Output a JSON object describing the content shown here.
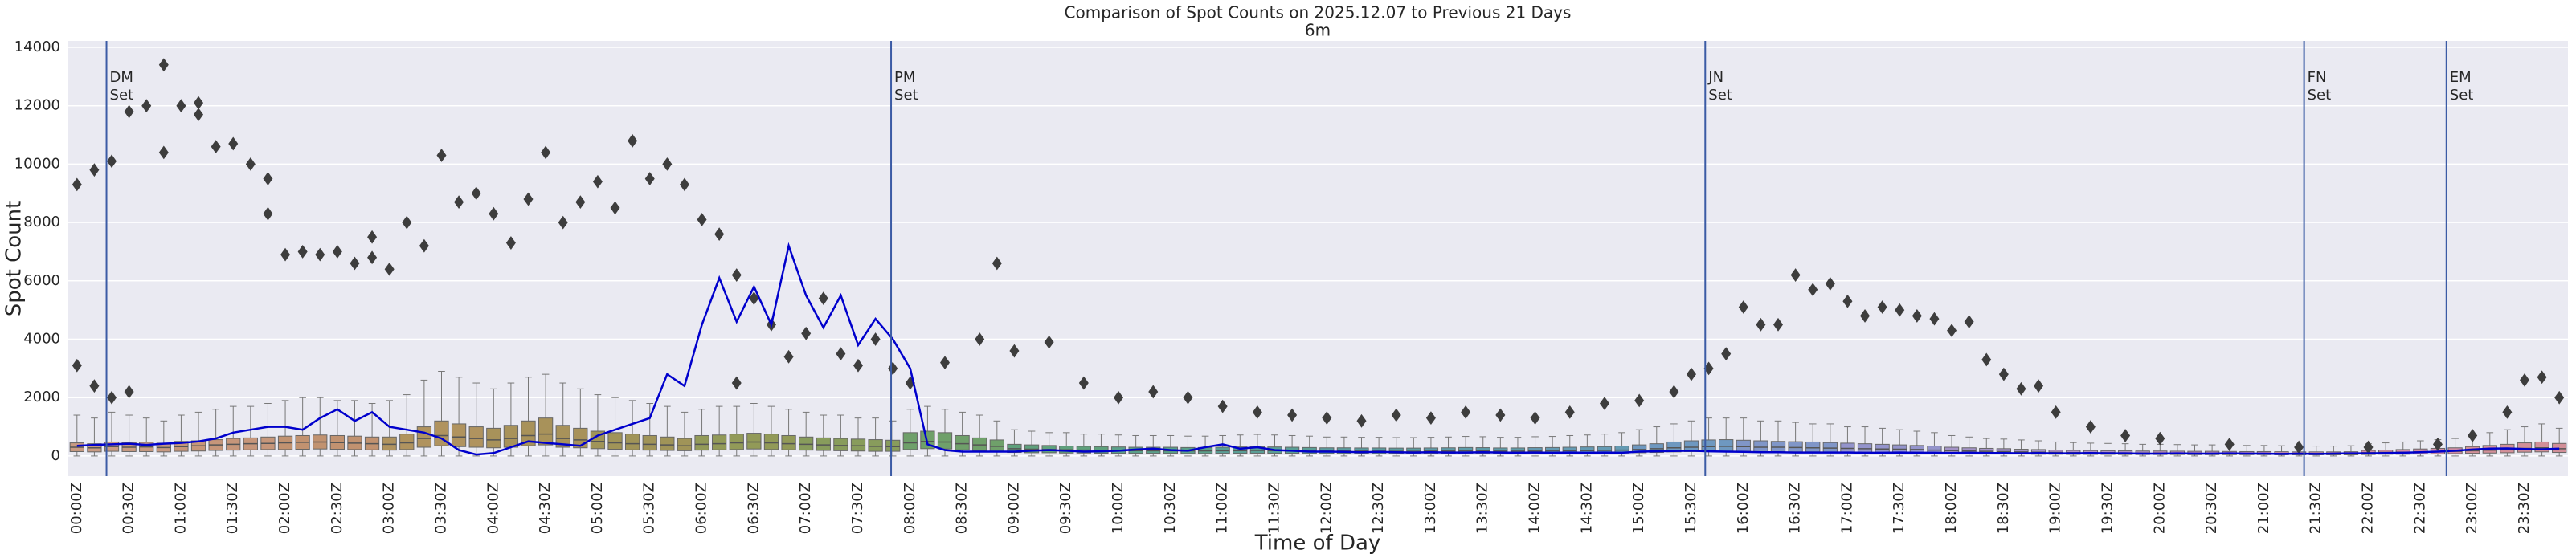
{
  "chart_data": {
    "type": "box",
    "title": "Comparison of Spot Counts on 2025.12.07 to Previous 21 Days",
    "subtitle": "6m",
    "x_label": "Time of Day",
    "y_label": "Spot Count",
    "categories": [
      "00:00Z",
      null,
      null,
      "00:30Z",
      null,
      null,
      "01:00Z",
      null,
      null,
      "01:30Z",
      null,
      null,
      "02:00Z",
      null,
      null,
      "02:30Z",
      null,
      null,
      "03:00Z",
      null,
      null,
      "03:30Z",
      null,
      null,
      "04:00Z",
      null,
      null,
      "04:30Z",
      null,
      null,
      "05:00Z",
      null,
      null,
      "05:30Z",
      null,
      null,
      "06:00Z",
      null,
      null,
      "06:30Z",
      null,
      null,
      "07:00Z",
      null,
      null,
      "07:30Z",
      null,
      null,
      "08:00Z",
      null,
      null,
      "08:30Z",
      null,
      null,
      "09:00Z",
      null,
      null,
      "09:30Z",
      null,
      null,
      "10:00Z",
      null,
      null,
      "10:30Z",
      null,
      null,
      "11:00Z",
      null,
      null,
      "11:30Z",
      null,
      null,
      "12:00Z",
      null,
      null,
      "12:30Z",
      null,
      null,
      "13:00Z",
      null,
      null,
      "13:30Z",
      null,
      null,
      "14:00Z",
      null,
      null,
      "14:30Z",
      null,
      null,
      "15:00Z",
      null,
      null,
      "15:30Z",
      null,
      null,
      "16:00Z",
      null,
      null,
      "16:30Z",
      null,
      null,
      "17:00Z",
      null,
      null,
      "17:30Z",
      null,
      null,
      "18:00Z",
      null,
      null,
      "18:30Z",
      null,
      null,
      "19:00Z",
      null,
      null,
      "19:30Z",
      null,
      null,
      "20:00Z",
      null,
      null,
      "20:30Z",
      null,
      null,
      "21:00Z",
      null,
      null,
      "21:30Z",
      null,
      null,
      "22:00Z",
      null,
      null,
      "22:30Z",
      null,
      null,
      "23:00Z",
      null,
      null,
      "23:30Z",
      null,
      null
    ],
    "boxes": {
      "q1": [
        150,
        140,
        160,
        150,
        150,
        140,
        160,
        170,
        190,
        200,
        210,
        220,
        220,
        230,
        240,
        230,
        220,
        210,
        200,
        220,
        300,
        350,
        320,
        300,
        280,
        300,
        350,
        380,
        300,
        280,
        250,
        230,
        210,
        200,
        190,
        180,
        200,
        210,
        220,
        240,
        220,
        210,
        200,
        190,
        180,
        170,
        160,
        160,
        220,
        250,
        240,
        210,
        190,
        160,
        120,
        110,
        110,
        100,
        100,
        90,
        90,
        90,
        90,
        90,
        85,
        85,
        90,
        90,
        95,
        90,
        90,
        85,
        85,
        85,
        80,
        80,
        80,
        80,
        80,
        85,
        85,
        85,
        80,
        80,
        85,
        85,
        90,
        90,
        95,
        100,
        110,
        120,
        140,
        150,
        160,
        160,
        160,
        150,
        150,
        140,
        140,
        130,
        130,
        120,
        120,
        110,
        110,
        100,
        90,
        80,
        80,
        70,
        70,
        60,
        60,
        55,
        55,
        55,
        50,
        50,
        50,
        50,
        45,
        45,
        45,
        45,
        45,
        40,
        40,
        40,
        40,
        40,
        50,
        60,
        60,
        70,
        70,
        80,
        90,
        100,
        110,
        130,
        140,
        120
      ],
      "median": [
        300,
        280,
        320,
        300,
        310,
        290,
        320,
        350,
        380,
        400,
        420,
        430,
        450,
        470,
        480,
        460,
        440,
        420,
        400,
        450,
        600,
        700,
        650,
        600,
        550,
        600,
        700,
        750,
        600,
        550,
        500,
        450,
        420,
        400,
        380,
        350,
        400,
        420,
        450,
        480,
        450,
        420,
        400,
        380,
        360,
        350,
        330,
        320,
        450,
        500,
        480,
        420,
        380,
        330,
        250,
        230,
        220,
        210,
        200,
        190,
        190,
        185,
        180,
        180,
        175,
        175,
        180,
        185,
        190,
        185,
        180,
        175,
        170,
        170,
        165,
        165,
        160,
        160,
        165,
        170,
        175,
        170,
        165,
        165,
        170,
        175,
        180,
        185,
        190,
        200,
        220,
        250,
        280,
        300,
        320,
        330,
        320,
        300,
        300,
        290,
        280,
        270,
        260,
        250,
        240,
        230,
        220,
        200,
        180,
        170,
        160,
        150,
        140,
        130,
        120,
        115,
        110,
        110,
        105,
        100,
        100,
        100,
        95,
        95,
        90,
        90,
        90,
        85,
        85,
        80,
        80,
        85,
        110,
        120,
        130,
        140,
        150,
        160,
        180,
        200,
        230,
        260,
        280,
        250
      ],
      "q3": [
        450,
        420,
        480,
        460,
        470,
        440,
        500,
        520,
        560,
        600,
        620,
        650,
        680,
        700,
        720,
        700,
        680,
        650,
        650,
        750,
        1000,
        1200,
        1100,
        1000,
        950,
        1050,
        1200,
        1300,
        1050,
        950,
        850,
        800,
        750,
        700,
        650,
        600,
        700,
        720,
        750,
        780,
        750,
        700,
        650,
        620,
        600,
        580,
        560,
        540,
        800,
        850,
        800,
        700,
        620,
        550,
        400,
        380,
        360,
        340,
        330,
        320,
        310,
        300,
        300,
        300,
        290,
        290,
        300,
        310,
        320,
        310,
        300,
        290,
        280,
        280,
        275,
        275,
        270,
        270,
        275,
        280,
        290,
        285,
        275,
        275,
        285,
        290,
        300,
        310,
        320,
        340,
        380,
        420,
        480,
        520,
        550,
        560,
        540,
        520,
        500,
        490,
        480,
        460,
        440,
        420,
        400,
        380,
        360,
        340,
        300,
        280,
        260,
        250,
        230,
        220,
        200,
        190,
        185,
        180,
        175,
        170,
        170,
        165,
        160,
        160,
        155,
        150,
        150,
        145,
        140,
        140,
        140,
        145,
        190,
        200,
        220,
        240,
        260,
        280,
        320,
        360,
        400,
        450,
        480,
        430
      ],
      "whisker_low": [
        0,
        0,
        0,
        0,
        0,
        0,
        0,
        0,
        0,
        0,
        0,
        0,
        0,
        0,
        0,
        0,
        0,
        0,
        0,
        0,
        0,
        0,
        0,
        0,
        0,
        0,
        0,
        0,
        0,
        0,
        0,
        0,
        0,
        0,
        0,
        0,
        0,
        0,
        0,
        0,
        0,
        0,
        0,
        0,
        0,
        0,
        0,
        0,
        0,
        0,
        0,
        0,
        0,
        0,
        0,
        0,
        0,
        0,
        0,
        0,
        0,
        0,
        0,
        0,
        0,
        0,
        0,
        0,
        0,
        0,
        0,
        0,
        0,
        0,
        0,
        0,
        0,
        0,
        0,
        0,
        0,
        0,
        0,
        0,
        0,
        0,
        0,
        0,
        0,
        0,
        0,
        0,
        0,
        0,
        0,
        0,
        0,
        0,
        0,
        0,
        0,
        0,
        0,
        0,
        0,
        0,
        0,
        0,
        0,
        0,
        0,
        0,
        0,
        0,
        0,
        0,
        0,
        0,
        0,
        0,
        0,
        0,
        0,
        0,
        0,
        0,
        0,
        0,
        0,
        0,
        0,
        0,
        0,
        0,
        0,
        0,
        0,
        0,
        0,
        0,
        0,
        0,
        0,
        0
      ],
      "whisker_high": [
        1400,
        1300,
        1500,
        1400,
        1300,
        1200,
        1400,
        1500,
        1600,
        1700,
        1700,
        1800,
        1900,
        2000,
        2000,
        1900,
        1900,
        1800,
        1900,
        2100,
        2600,
        2900,
        2700,
        2500,
        2300,
        2500,
        2700,
        2800,
        2500,
        2300,
        2100,
        2000,
        1900,
        1800,
        1700,
        1500,
        1600,
        1700,
        1700,
        1800,
        1700,
        1600,
        1500,
        1400,
        1400,
        1300,
        1300,
        1200,
        1600,
        1700,
        1600,
        1500,
        1400,
        1200,
        900,
        850,
        800,
        800,
        750,
        750,
        720,
        700,
        700,
        700,
        680,
        680,
        700,
        720,
        740,
        720,
        700,
        680,
        650,
        650,
        640,
        640,
        630,
        630,
        640,
        650,
        670,
        660,
        640,
        640,
        660,
        670,
        700,
        720,
        750,
        800,
        900,
        1000,
        1100,
        1200,
        1300,
        1300,
        1300,
        1200,
        1200,
        1150,
        1100,
        1100,
        1000,
        1000,
        950,
        900,
        850,
        800,
        700,
        650,
        600,
        580,
        550,
        520,
        480,
        460,
        440,
        430,
        420,
        400,
        400,
        390,
        380,
        380,
        370,
        360,
        360,
        350,
        340,
        340,
        340,
        350,
        420,
        450,
        480,
        520,
        560,
        600,
        700,
        800,
        900,
        1000,
        1100,
        950
      ],
      "colors": [
        "#c89a82",
        "#c6967a",
        "#c19270",
        "#b0935f",
        "#a8925a",
        "#a09458",
        "#929a58",
        "#889c5c",
        "#6fa06a",
        "#5ea07c",
        "#5aa08a",
        "#5a9f96",
        "#5b9ea0",
        "#5e9daa",
        "#649bb4",
        "#6e98c0",
        "#8096c8",
        "#9494cc",
        "#a493c8",
        "#b090c4",
        "#be8ebc",
        "#c98cb0",
        "#d08ca4",
        "#d28f98"
      ]
    },
    "outliers": [
      [
        0,
        9300
      ],
      [
        0,
        3100
      ],
      [
        1,
        9800
      ],
      [
        1,
        2400
      ],
      [
        2,
        10100
      ],
      [
        2,
        2000
      ],
      [
        3,
        11800
      ],
      [
        3,
        2200
      ],
      [
        4,
        12000
      ],
      [
        5,
        13400
      ],
      [
        5,
        10400
      ],
      [
        6,
        12000
      ],
      [
        7,
        11700
      ],
      [
        7,
        12100
      ],
      [
        8,
        10600
      ],
      [
        9,
        10700
      ],
      [
        10,
        10000
      ],
      [
        11,
        9500
      ],
      [
        11,
        8300
      ],
      [
        12,
        6900
      ],
      [
        13,
        7000
      ],
      [
        14,
        6900
      ],
      [
        15,
        7000
      ],
      [
        16,
        6600
      ],
      [
        17,
        7500
      ],
      [
        17,
        6800
      ],
      [
        18,
        6400
      ],
      [
        19,
        8000
      ],
      [
        20,
        7200
      ],
      [
        21,
        10300
      ],
      [
        22,
        8700
      ],
      [
        23,
        9000
      ],
      [
        24,
        8300
      ],
      [
        25,
        7300
      ],
      [
        26,
        8800
      ],
      [
        27,
        10400
      ],
      [
        28,
        8000
      ],
      [
        29,
        8700
      ],
      [
        30,
        9400
      ],
      [
        31,
        8500
      ],
      [
        32,
        10800
      ],
      [
        33,
        9500
      ],
      [
        34,
        10000
      ],
      [
        35,
        9300
      ],
      [
        36,
        8100
      ],
      [
        37,
        7600
      ],
      [
        38,
        6200
      ],
      [
        38,
        2500
      ],
      [
        39,
        5400
      ],
      [
        40,
        4500
      ],
      [
        41,
        3400
      ],
      [
        42,
        4200
      ],
      [
        43,
        5400
      ],
      [
        44,
        3500
      ],
      [
        45,
        3100
      ],
      [
        46,
        4000
      ],
      [
        47,
        3000
      ],
      [
        48,
        2500
      ],
      [
        50,
        3200
      ],
      [
        52,
        4000
      ],
      [
        53,
        6600
      ],
      [
        54,
        3600
      ],
      [
        56,
        3900
      ],
      [
        58,
        2500
      ],
      [
        60,
        2000
      ],
      [
        62,
        2200
      ],
      [
        64,
        2000
      ],
      [
        66,
        1700
      ],
      [
        68,
        1500
      ],
      [
        70,
        1400
      ],
      [
        72,
        1300
      ],
      [
        74,
        1200
      ],
      [
        76,
        1400
      ],
      [
        78,
        1300
      ],
      [
        80,
        1500
      ],
      [
        82,
        1400
      ],
      [
        84,
        1300
      ],
      [
        86,
        1500
      ],
      [
        88,
        1800
      ],
      [
        90,
        1900
      ],
      [
        92,
        2200
      ],
      [
        93,
        2800
      ],
      [
        94,
        3000
      ],
      [
        95,
        3500
      ],
      [
        96,
        5100
      ],
      [
        97,
        4500
      ],
      [
        98,
        4500
      ],
      [
        99,
        6200
      ],
      [
        100,
        5700
      ],
      [
        101,
        5900
      ],
      [
        102,
        5300
      ],
      [
        103,
        4800
      ],
      [
        104,
        5100
      ],
      [
        105,
        5000
      ],
      [
        106,
        4800
      ],
      [
        107,
        4700
      ],
      [
        108,
        4300
      ],
      [
        109,
        4600
      ],
      [
        110,
        3300
      ],
      [
        111,
        2800
      ],
      [
        112,
        2300
      ],
      [
        113,
        2400
      ],
      [
        114,
        1500
      ],
      [
        116,
        1000
      ],
      [
        118,
        700
      ],
      [
        120,
        600
      ],
      [
        124,
        400
      ],
      [
        128,
        300
      ],
      [
        132,
        300
      ],
      [
        136,
        400
      ],
      [
        138,
        700
      ],
      [
        140,
        1500
      ],
      [
        141,
        2600
      ],
      [
        142,
        2700
      ],
      [
        143,
        2000
      ]
    ],
    "outlier_color": "#3d3d3d",
    "series": [
      {
        "color": "#0000cc",
        "values": [
          350,
          380,
          400,
          420,
          380,
          420,
          450,
          500,
          600,
          800,
          900,
          1000,
          1000,
          900,
          1300,
          1600,
          1200,
          1500,
          1000,
          900,
          800,
          600,
          200,
          50,
          100,
          300,
          500,
          450,
          400,
          350,
          700,
          900,
          1100,
          1300,
          2800,
          2400,
          4500,
          6100,
          4600,
          5800,
          4500,
          7200,
          5500,
          4400,
          5500,
          3800,
          4700,
          4000,
          3000,
          400,
          200,
          150,
          150,
          150,
          150,
          180,
          200,
          180,
          150,
          160,
          180,
          220,
          250,
          200,
          180,
          300,
          400,
          250,
          300,
          200,
          180,
          150,
          150,
          140,
          130,
          140,
          130,
          120,
          130,
          120,
          120,
          130,
          120,
          110,
          120,
          110,
          120,
          110,
          120,
          110,
          150,
          160,
          170,
          180,
          160,
          150,
          140,
          130,
          130,
          120,
          120,
          120,
          120,
          110,
          110,
          120,
          110,
          110,
          100,
          110,
          100,
          100,
          90,
          100,
          90,
          90,
          100,
          90,
          90,
          80,
          80,
          90,
          80,
          80,
          90,
          80,
          80,
          70,
          80,
          70,
          80,
          90,
          90,
          100,
          110,
          130,
          150,
          180,
          220,
          250,
          260,
          240,
          230,
          250
        ]
      }
    ],
    "vlines": [
      {
        "x": 1.7,
        "label": [
          "DM",
          "Set"
        ]
      },
      {
        "x": 46.9,
        "label": [
          "PM",
          "Set"
        ]
      },
      {
        "x": 93.8,
        "label": [
          "JN",
          "Set"
        ]
      },
      {
        "x": 128.3,
        "label": [
          "FN",
          "Set"
        ]
      },
      {
        "x": 136.5,
        "label": [
          "EM",
          "Set"
        ]
      }
    ],
    "vline_color": "#3b5ba5",
    "ylim": [
      -690,
      14220
    ],
    "yticks": [
      0,
      2000,
      4000,
      6000,
      8000,
      10000,
      12000,
      14000
    ],
    "grid": true
  }
}
